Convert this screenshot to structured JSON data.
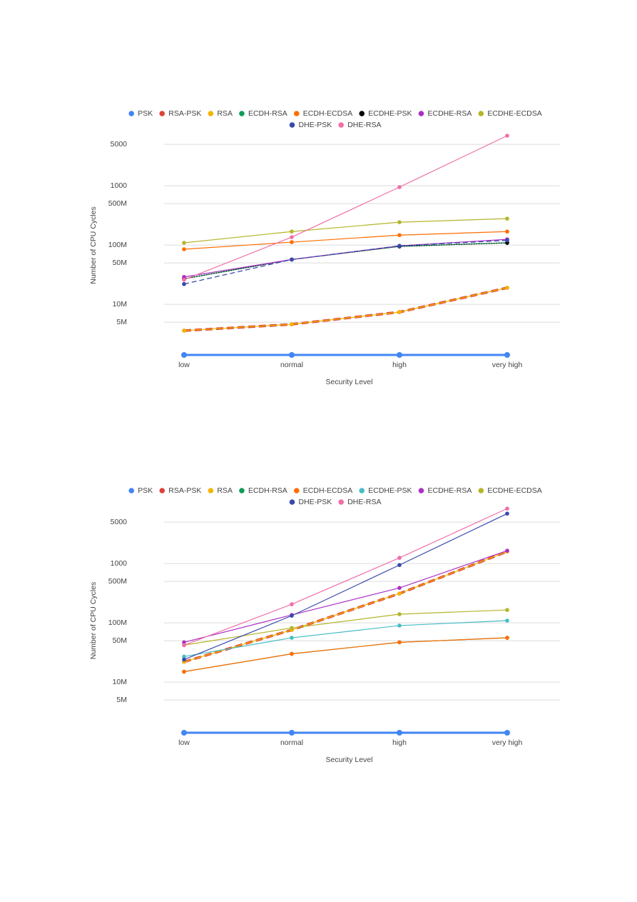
{
  "chart_data": [
    {
      "type": "line",
      "x_label": "Security Level",
      "y_label": "Number of CPU Cycles",
      "log_scale": true,
      "grid": true,
      "legend": "top",
      "categories": [
        "low",
        "normal",
        "high",
        "very high"
      ],
      "ylim": [
        1.4,
        7000
      ],
      "yticks": [
        {
          "value": 5,
          "label": "5M"
        },
        {
          "value": 10,
          "label": "10M"
        },
        {
          "value": 50,
          "label": "50M"
        },
        {
          "value": 100,
          "label": "100M"
        },
        {
          "value": 500,
          "label": "500M"
        },
        1000,
        5000
      ],
      "series": [
        {
          "name": "PSK",
          "color": "#4285f4",
          "values": [
            1.4,
            1.4,
            1.4,
            1.4
          ]
        },
        {
          "name": "RSA-PSK",
          "color": "#db4437",
          "line_style": "dashed",
          "values": [
            3.6,
            4.6,
            7.4,
            19
          ]
        },
        {
          "name": "RSA",
          "color": "#f4b400",
          "values": [
            3.6,
            4.6,
            7.4,
            19
          ]
        },
        {
          "name": "ECDH-RSA",
          "color": "#0f9d58",
          "values": [
            27,
            57,
            95,
            109
          ]
        },
        {
          "name": "ECDH-ECDSA",
          "color": "#ff6d00",
          "values": [
            85,
            112,
            147,
            169
          ]
        },
        {
          "name": "ECDHE-PSK",
          "color": "#000000",
          "line_style": "dotted",
          "values": [
            27,
            57,
            95,
            109
          ]
        },
        {
          "name": "ECDHE-RSA",
          "color": "#ab30c4",
          "values": [
            29,
            57,
            97,
            125
          ]
        },
        {
          "name": "ECDHE-ECDSA",
          "color": "#b5b52a",
          "values": [
            109,
            169,
            243,
            279
          ]
        },
        {
          "name": "DHE-PSK",
          "color": "#3949ab",
          "line_style": "dashed",
          "values": [
            22,
            57,
            97,
            120
          ]
        },
        {
          "name": "DHE-RSA",
          "color": "#f06ea9",
          "values": [
            26,
            136,
            950,
            7000
          ]
        }
      ]
    },
    {
      "type": "line",
      "x_label": "Security Level",
      "y_label": "Number of CPU Cycles",
      "log_scale": true,
      "grid": true,
      "legend": "top",
      "categories": [
        "low",
        "normal",
        "high",
        "very high"
      ],
      "ylim": [
        1.4,
        8500
      ],
      "yticks": [
        {
          "value": 5,
          "label": "5M"
        },
        {
          "value": 10,
          "label": "10M"
        },
        {
          "value": 50,
          "label": "50M"
        },
        {
          "value": 100,
          "label": "100M"
        },
        {
          "value": 500,
          "label": "500M"
        },
        1000,
        5000
      ],
      "series": [
        {
          "name": "PSK",
          "color": "#4285f4",
          "values": [
            1.4,
            1.4,
            1.4,
            1.4
          ]
        },
        {
          "name": "RSA-PSK",
          "color": "#db4437",
          "line_style": "dashed",
          "values": [
            22,
            76,
            312,
            1600
          ]
        },
        {
          "name": "RSA",
          "color": "#f4b400",
          "values": [
            22,
            76,
            312,
            1600
          ]
        },
        {
          "name": "ECDH-RSA",
          "color": "#0f9d58",
          "values": [
            15,
            30,
            47,
            56
          ]
        },
        {
          "name": "ECDH-ECDSA",
          "color": "#ff6d00",
          "values": [
            15,
            30,
            47,
            56
          ]
        },
        {
          "name": "ECDHE-PSK",
          "color": "#46bdc6",
          "values": [
            27,
            56,
            90,
            109
          ]
        },
        {
          "name": "ECDHE-RSA",
          "color": "#ab30c4",
          "values": [
            47,
            136,
            389,
            1650
          ]
        },
        {
          "name": "ECDHE-ECDSA",
          "color": "#b5b52a",
          "values": [
            42,
            82,
            140,
            165
          ]
        },
        {
          "name": "DHE-PSK",
          "color": "#3949ab",
          "values": [
            24,
            132,
            946,
            6970
          ]
        },
        {
          "name": "DHE-RSA",
          "color": "#f06ea9",
          "values": [
            42,
            206,
            1250,
            8470
          ]
        }
      ]
    }
  ]
}
